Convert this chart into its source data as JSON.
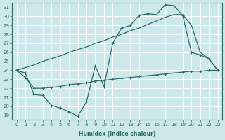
{
  "xlabel": "Humidex (Indice chaleur)",
  "bg_color": "#cce8eb",
  "line_color": "#2e6b65",
  "grid_color": "#ffffff",
  "xlim": [
    -0.5,
    23.5
  ],
  "ylim": [
    18.5,
    31.5
  ],
  "yticks": [
    19,
    20,
    21,
    22,
    23,
    24,
    25,
    26,
    27,
    28,
    29,
    30,
    31
  ],
  "xticks": [
    0,
    1,
    2,
    3,
    4,
    5,
    6,
    7,
    8,
    9,
    10,
    11,
    12,
    13,
    14,
    15,
    16,
    17,
    18,
    19,
    20,
    21,
    22,
    23
  ],
  "curve_upper_x": [
    0,
    1,
    2,
    3,
    4,
    5,
    6,
    7,
    8,
    9,
    10,
    11,
    12,
    13,
    14,
    15,
    16,
    17,
    18,
    19,
    20,
    21,
    22,
    23
  ],
  "curve_upper_y": [
    24.0,
    24.3,
    24.6,
    25.0,
    25.3,
    25.6,
    26.0,
    26.3,
    26.6,
    27.0,
    27.3,
    27.7,
    28.0,
    28.4,
    28.7,
    29.1,
    29.5,
    29.9,
    30.2,
    30.2,
    29.0,
    26.0,
    25.3,
    24.0
  ],
  "curve_zigzag_x": [
    0,
    1,
    2,
    3,
    4,
    5,
    6,
    7,
    8,
    9,
    10,
    11,
    12,
    13,
    14,
    15,
    16,
    17,
    18,
    19,
    20,
    21,
    22,
    23
  ],
  "curve_zigzag_y": [
    24.0,
    23.7,
    21.3,
    21.2,
    20.1,
    19.8,
    19.4,
    18.9,
    20.5,
    24.5,
    22.2,
    27.0,
    28.7,
    29.0,
    30.1,
    30.3,
    30.2,
    31.3,
    31.2,
    30.1,
    26.0,
    25.7,
    25.3,
    24.0
  ],
  "curve_lower_x": [
    0,
    1,
    2,
    3,
    4,
    5,
    6,
    7,
    8,
    9,
    10,
    11,
    12,
    13,
    14,
    15,
    16,
    17,
    18,
    19,
    20,
    21,
    22,
    23
  ],
  "curve_lower_y": [
    24.0,
    23.2,
    22.0,
    22.0,
    22.1,
    22.2,
    22.4,
    22.5,
    22.6,
    22.8,
    22.9,
    23.0,
    23.1,
    23.2,
    23.3,
    23.4,
    23.5,
    23.6,
    23.7,
    23.8,
    23.9,
    23.9,
    24.0,
    24.0
  ]
}
